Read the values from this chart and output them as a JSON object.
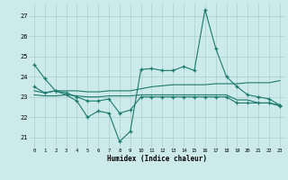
{
  "x": [
    0,
    1,
    2,
    3,
    4,
    5,
    6,
    7,
    8,
    9,
    10,
    11,
    12,
    13,
    14,
    15,
    16,
    17,
    18,
    19,
    20,
    21,
    22,
    23
  ],
  "line1": [
    24.6,
    23.9,
    23.3,
    23.1,
    22.8,
    22.0,
    22.3,
    22.2,
    20.8,
    21.3,
    24.35,
    24.4,
    24.3,
    24.3,
    24.5,
    24.3,
    27.3,
    25.4,
    24.0,
    23.5,
    23.1,
    23.0,
    22.9,
    22.6
  ],
  "line2": [
    23.5,
    23.2,
    23.3,
    23.2,
    23.0,
    22.8,
    22.8,
    22.9,
    22.2,
    22.35,
    23.0,
    23.0,
    23.0,
    23.0,
    23.0,
    23.0,
    23.0,
    23.0,
    23.0,
    22.7,
    22.7,
    22.7,
    22.7,
    22.55
  ],
  "line3": [
    23.3,
    23.2,
    23.3,
    23.3,
    23.3,
    23.25,
    23.25,
    23.3,
    23.3,
    23.3,
    23.4,
    23.5,
    23.55,
    23.6,
    23.6,
    23.6,
    23.6,
    23.65,
    23.65,
    23.65,
    23.7,
    23.7,
    23.7,
    23.8
  ],
  "line4": [
    23.1,
    23.05,
    23.05,
    23.1,
    23.05,
    23.0,
    23.0,
    23.05,
    23.05,
    23.05,
    23.1,
    23.1,
    23.1,
    23.1,
    23.1,
    23.1,
    23.1,
    23.1,
    23.1,
    22.85,
    22.85,
    22.7,
    22.7,
    22.6
  ],
  "line_color": "#1a7a6e",
  "bg_color": "#cdeaea",
  "grid_color": "#aacece",
  "ylabel_vals": [
    21,
    22,
    23,
    24,
    25,
    26,
    27
  ],
  "ylim": [
    20.5,
    27.6
  ],
  "xlim": [
    -0.5,
    23.5
  ],
  "xlabel": "Humidex (Indice chaleur)"
}
